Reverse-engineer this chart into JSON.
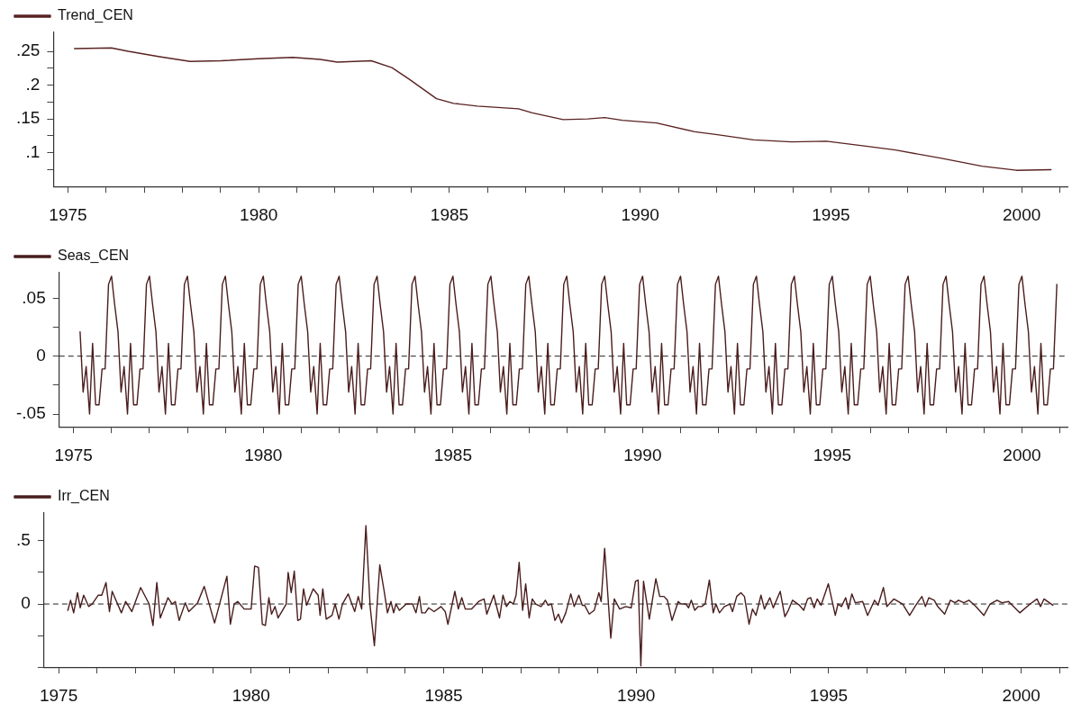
{
  "chart_data": [
    {
      "type": "line",
      "legend": "top left",
      "marker": "none",
      "grid": false,
      "xlim": [
        1974.62,
        2001.2
      ],
      "xticks": [
        1975,
        {
          "value": 1976,
          "label": null
        },
        {
          "value": 1977,
          "label": null
        },
        {
          "value": 1978,
          "label": null
        },
        {
          "value": 1979,
          "label": null
        },
        1980,
        {
          "value": 1981,
          "label": null
        },
        {
          "value": 1982,
          "label": null
        },
        {
          "value": 1983,
          "label": null
        },
        {
          "value": 1984,
          "label": null
        },
        1985,
        {
          "value": 1986,
          "label": null
        },
        {
          "value": 1987,
          "label": null
        },
        {
          "value": 1988,
          "label": null
        },
        {
          "value": 1989,
          "label": null
        },
        1990,
        {
          "value": 1991,
          "label": null
        },
        {
          "value": 1992,
          "label": null
        },
        {
          "value": 1993,
          "label": null
        },
        {
          "value": 1994,
          "label": null
        },
        1995,
        {
          "value": 1996,
          "label": null
        },
        {
          "value": 1997,
          "label": null
        },
        {
          "value": 1998,
          "label": null
        },
        {
          "value": 1999,
          "label": null
        },
        2000,
        {
          "value": 2001,
          "label": null
        }
      ],
      "ylim": [
        0.05,
        0.278
      ],
      "yticks": [
        {
          "value": 0.075,
          "label": null
        },
        {
          "value": 0.1,
          "label": ".1"
        },
        {
          "value": 0.125,
          "label": null
        },
        {
          "value": 0.15,
          "label": ".15"
        },
        {
          "value": 0.175,
          "label": null
        },
        {
          "value": 0.2,
          "label": ".2"
        },
        {
          "value": 0.225,
          "label": null
        },
        {
          "value": 0.25,
          "label": ".25"
        }
      ],
      "series": [
        {
          "name": "Trend_CEN",
          "color": "#5a2222",
          "x": [
            1975.17,
            1976.14,
            1976.58,
            1977.4,
            1978.2,
            1979.01,
            1979.99,
            1980.89,
            1981.61,
            1982.06,
            1982.95,
            1983.49,
            1983.94,
            1984.66,
            1985.11,
            1985.73,
            1986.81,
            1987.17,
            1987.98,
            1988.62,
            1989.07,
            1989.53,
            1990.43,
            1991.43,
            1991.98,
            1992.97,
            1993.97,
            1994.88,
            1995.87,
            1996.69,
            1997.87,
            1998.96,
            1999.86,
            2000.77
          ],
          "values": [
            0.254,
            0.255,
            0.25,
            0.242,
            0.235,
            0.236,
            0.239,
            0.241,
            0.238,
            0.234,
            0.236,
            0.226,
            0.209,
            0.18,
            0.173,
            0.169,
            0.165,
            0.159,
            0.149,
            0.15,
            0.152,
            0.148,
            0.144,
            0.131,
            0.127,
            0.119,
            0.116,
            0.117,
            0.11,
            0.104,
            0.092,
            0.08,
            0.074,
            0.075
          ]
        }
      ]
    },
    {
      "type": "line",
      "legend": "top left",
      "marker": "none",
      "grid": false,
      "xlim": [
        1974.62,
        2001.2
      ],
      "xticks": [
        1975,
        {
          "value": 1976,
          "label": null
        },
        {
          "value": 1977,
          "label": null
        },
        {
          "value": 1978,
          "label": null
        },
        {
          "value": 1979,
          "label": null
        },
        1980,
        {
          "value": 1981,
          "label": null
        },
        {
          "value": 1982,
          "label": null
        },
        {
          "value": 1983,
          "label": null
        },
        {
          "value": 1984,
          "label": null
        },
        1985,
        {
          "value": 1986,
          "label": null
        },
        {
          "value": 1987,
          "label": null
        },
        {
          "value": 1988,
          "label": null
        },
        {
          "value": 1989,
          "label": null
        },
        1990,
        {
          "value": 1991,
          "label": null
        },
        {
          "value": 1992,
          "label": null
        },
        {
          "value": 1993,
          "label": null
        },
        {
          "value": 1994,
          "label": null
        },
        1995,
        {
          "value": 1996,
          "label": null
        },
        {
          "value": 1997,
          "label": null
        },
        {
          "value": 1998,
          "label": null
        },
        {
          "value": 1999,
          "label": null
        },
        2000,
        {
          "value": 2001,
          "label": null
        }
      ],
      "ylim": [
        -0.061,
        0.072
      ],
      "yticks": [
        {
          "value": -0.05,
          "label": "-.05"
        },
        {
          "value": -0.025,
          "label": null
        },
        0,
        {
          "value": 0.025,
          "label": null
        },
        {
          "value": 0.05,
          "label": ".05"
        }
      ],
      "ref_lines": [
        {
          "axis": "y",
          "value": 0,
          "line_style": "dashed"
        }
      ],
      "series": [
        {
          "name": "Seas_CEN",
          "color": "#4a1c1c",
          "x": [
            1975.17,
            1975.25,
            1975.33,
            1975.42,
            1975.5,
            1975.58,
            1975.67,
            1975.75,
            1975.83,
            1975.92,
            1976,
            1976.08,
            1976.17,
            1976.25,
            1976.33,
            1976.42,
            1976.5,
            1976.58,
            1976.67,
            1976.75,
            1976.83,
            1976.92,
            1977,
            1977.08,
            1977.17,
            1977.25,
            1977.33,
            1977.42,
            1977.5,
            1977.58,
            1977.67,
            1977.75,
            1977.83,
            1977.92,
            1978,
            1978.08,
            1978.17,
            1978.25,
            1978.33,
            1978.42,
            1978.5,
            1978.58,
            1978.67,
            1978.75,
            1978.83,
            1978.92,
            1979,
            1979.08,
            1979.17,
            1979.25,
            1979.33,
            1979.42,
            1979.5,
            1979.58,
            1979.67,
            1979.75,
            1979.83,
            1979.92,
            1980,
            1980.08,
            1980.17,
            1980.25,
            1980.33,
            1980.42,
            1980.5,
            1980.58,
            1980.67,
            1980.75,
            1980.83,
            1980.92,
            1981,
            1981.08,
            1981.17,
            1981.25,
            1981.33,
            1981.42,
            1981.5,
            1981.58,
            1981.67,
            1981.75,
            1981.83,
            1981.92,
            1982,
            1982.08,
            1982.17,
            1982.25,
            1982.33,
            1982.42,
            1982.5,
            1982.58,
            1982.67,
            1982.75,
            1982.83,
            1982.92,
            1983,
            1983.08,
            1983.17,
            1983.25,
            1983.33,
            1983.42,
            1983.5,
            1983.58,
            1983.67,
            1983.75,
            1983.83,
            1983.92,
            1984,
            1984.08,
            1984.17,
            1984.25,
            1984.33,
            1984.42,
            1984.5,
            1984.58,
            1984.67,
            1984.75,
            1984.83,
            1984.92,
            1985,
            1985.08,
            1985.17,
            1985.25,
            1985.33,
            1985.42,
            1985.5,
            1985.58,
            1985.67,
            1985.75,
            1985.83,
            1985.92,
            1986,
            1986.08,
            1986.17,
            1986.25,
            1986.33,
            1986.42,
            1986.5,
            1986.58,
            1986.67,
            1986.75,
            1986.83,
            1986.92,
            1987,
            1987.08,
            1987.17,
            1987.25,
            1987.33,
            1987.42,
            1987.5,
            1987.58,
            1987.67,
            1987.75,
            1987.83,
            1987.92,
            1988,
            1988.08,
            1988.17,
            1988.25,
            1988.33,
            1988.42,
            1988.5,
            1988.58,
            1988.67,
            1988.75,
            1988.83,
            1988.92,
            1989,
            1989.08,
            1989.17,
            1989.25,
            1989.33,
            1989.42,
            1989.5,
            1989.58,
            1989.67,
            1989.75,
            1989.83,
            1989.92,
            1990,
            1990.08,
            1990.17,
            1990.25,
            1990.33,
            1990.42,
            1990.5,
            1990.58,
            1990.67,
            1990.75,
            1990.83,
            1990.92,
            1991,
            1991.08,
            1991.17,
            1991.25,
            1991.33,
            1991.42,
            1991.5,
            1991.58,
            1991.67,
            1991.75,
            1991.83,
            1991.92,
            1992,
            1992.08,
            1992.17,
            1992.25,
            1992.33,
            1992.42,
            1992.5,
            1992.58,
            1992.67,
            1992.75,
            1992.83,
            1992.92,
            1993,
            1993.08,
            1993.17,
            1993.25,
            1993.33,
            1993.42,
            1993.5,
            1993.58,
            1993.67,
            1993.75,
            1993.83,
            1993.92,
            1994,
            1994.08,
            1994.17,
            1994.25,
            1994.33,
            1994.42,
            1994.5,
            1994.58,
            1994.67,
            1994.75,
            1994.83,
            1994.92,
            1995,
            1995.08,
            1995.17,
            1995.25,
            1995.33,
            1995.42,
            1995.5,
            1995.58,
            1995.67,
            1995.75,
            1995.83,
            1995.92,
            1996,
            1996.08,
            1996.17,
            1996.25,
            1996.33,
            1996.42,
            1996.5,
            1996.58,
            1996.67,
            1996.75,
            1996.83,
            1996.92,
            1997,
            1997.08,
            1997.17,
            1997.25,
            1997.33,
            1997.42,
            1997.5,
            1997.58,
            1997.67,
            1997.75,
            1997.83,
            1997.92,
            1998,
            1998.08,
            1998.17,
            1998.25,
            1998.33,
            1998.42,
            1998.5,
            1998.58,
            1998.67,
            1998.75,
            1998.83,
            1998.92,
            1999,
            1999.08,
            1999.17,
            1999.25,
            1999.33,
            1999.42,
            1999.5,
            1999.58,
            1999.67,
            1999.75,
            1999.83,
            1999.92,
            2000,
            2000.08,
            2000.17,
            2000.25,
            2000.33,
            2000.42,
            2000.5,
            2000.58,
            2000.67,
            2000.75,
            2000.83,
            2000.92
          ],
          "values": [
            0.021,
            -0.031,
            -0.009,
            -0.05,
            0.011,
            -0.042,
            -0.042,
            -0.011,
            -0.011,
            0.062,
            0.069,
            0.045,
            0.021,
            -0.031,
            -0.009,
            -0.05,
            0.011,
            -0.042,
            -0.042,
            -0.011,
            -0.011,
            0.062,
            0.069,
            0.045,
            0.021,
            -0.031,
            -0.009,
            -0.05,
            0.011,
            -0.042,
            -0.042,
            -0.011,
            -0.011,
            0.062,
            0.069,
            0.045,
            0.021,
            -0.031,
            -0.009,
            -0.05,
            0.011,
            -0.042,
            -0.042,
            -0.011,
            -0.011,
            0.062,
            0.069,
            0.045,
            0.021,
            -0.031,
            -0.009,
            -0.05,
            0.011,
            -0.042,
            -0.042,
            -0.011,
            -0.011,
            0.062,
            0.069,
            0.045,
            0.021,
            -0.031,
            -0.009,
            -0.05,
            0.011,
            -0.042,
            -0.042,
            -0.011,
            -0.011,
            0.062,
            0.069,
            0.045,
            0.021,
            -0.031,
            -0.009,
            -0.05,
            0.011,
            -0.042,
            -0.042,
            -0.011,
            -0.011,
            0.062,
            0.069,
            0.045,
            0.021,
            -0.031,
            -0.009,
            -0.05,
            0.011,
            -0.042,
            -0.042,
            -0.011,
            -0.011,
            0.062,
            0.069,
            0.045,
            0.021,
            -0.031,
            -0.009,
            -0.05,
            0.011,
            -0.042,
            -0.042,
            -0.011,
            -0.011,
            0.062,
            0.069,
            0.045,
            0.021,
            -0.031,
            -0.009,
            -0.05,
            0.011,
            -0.042,
            -0.042,
            -0.011,
            -0.011,
            0.062,
            0.069,
            0.045,
            0.021,
            -0.031,
            -0.009,
            -0.05,
            0.011,
            -0.042,
            -0.042,
            -0.011,
            -0.011,
            0.062,
            0.069,
            0.045,
            0.021,
            -0.031,
            -0.009,
            -0.05,
            0.011,
            -0.042,
            -0.042,
            -0.011,
            -0.011,
            0.062,
            0.069,
            0.045,
            0.021,
            -0.031,
            -0.009,
            -0.05,
            0.011,
            -0.042,
            -0.042,
            -0.011,
            -0.011,
            0.062,
            0.069,
            0.045,
            0.021,
            -0.031,
            -0.009,
            -0.05,
            0.011,
            -0.042,
            -0.042,
            -0.011,
            -0.011,
            0.062,
            0.069,
            0.045,
            0.021,
            -0.031,
            -0.009,
            -0.05,
            0.011,
            -0.042,
            -0.042,
            -0.011,
            -0.011,
            0.062,
            0.069,
            0.045,
            0.021,
            -0.031,
            -0.009,
            -0.05,
            0.011,
            -0.042,
            -0.042,
            -0.011,
            -0.011,
            0.062,
            0.069,
            0.045,
            0.021,
            -0.031,
            -0.009,
            -0.05,
            0.011,
            -0.042,
            -0.042,
            -0.011,
            -0.011,
            0.062,
            0.069,
            0.045,
            0.021,
            -0.031,
            -0.009,
            -0.05,
            0.011,
            -0.042,
            -0.042,
            -0.011,
            -0.011,
            0.062,
            0.069,
            0.045,
            0.021,
            -0.031,
            -0.009,
            -0.05,
            0.011,
            -0.042,
            -0.042,
            -0.011,
            -0.011,
            0.062,
            0.069,
            0.045,
            0.021,
            -0.031,
            -0.009,
            -0.05,
            0.011,
            -0.042,
            -0.042,
            -0.011,
            -0.011,
            0.062,
            0.069,
            0.045,
            0.021,
            -0.031,
            -0.009,
            -0.05,
            0.011,
            -0.042,
            -0.042,
            -0.011,
            -0.011,
            0.062,
            0.069,
            0.045,
            0.021,
            -0.031,
            -0.009,
            -0.05,
            0.011,
            -0.042,
            -0.042,
            -0.011,
            -0.011,
            0.062,
            0.069,
            0.045,
            0.021,
            -0.031,
            -0.009,
            -0.05,
            0.011,
            -0.042,
            -0.042,
            -0.011,
            -0.011,
            0.062,
            0.069,
            0.045,
            0.021,
            -0.031,
            -0.009,
            -0.05,
            0.011,
            -0.042,
            -0.042,
            -0.011,
            -0.011,
            0.062,
            0.069,
            0.045,
            0.021,
            -0.031,
            -0.009,
            -0.05,
            0.011,
            -0.042,
            -0.042,
            -0.011,
            -0.011,
            0.062,
            0.069,
            0.045,
            0.021,
            -0.031,
            -0.009,
            -0.05,
            0.011,
            -0.042,
            -0.042,
            -0.011,
            -0.011,
            0.062
          ]
        }
      ]
    },
    {
      "type": "line",
      "legend": "top left",
      "marker": "none",
      "grid": false,
      "xlim": [
        1974.62,
        2001.2
      ],
      "xticks": [
        1975,
        {
          "value": 1976,
          "label": null
        },
        {
          "value": 1977,
          "label": null
        },
        {
          "value": 1978,
          "label": null
        },
        {
          "value": 1979,
          "label": null
        },
        1980,
        {
          "value": 1981,
          "label": null
        },
        {
          "value": 1982,
          "label": null
        },
        {
          "value": 1983,
          "label": null
        },
        {
          "value": 1984,
          "label": null
        },
        1985,
        {
          "value": 1986,
          "label": null
        },
        {
          "value": 1987,
          "label": null
        },
        {
          "value": 1988,
          "label": null
        },
        {
          "value": 1989,
          "label": null
        },
        1990,
        {
          "value": 1991,
          "label": null
        },
        {
          "value": 1992,
          "label": null
        },
        {
          "value": 1993,
          "label": null
        },
        {
          "value": 1994,
          "label": null
        },
        1995,
        {
          "value": 1996,
          "label": null
        },
        {
          "value": 1997,
          "label": null
        },
        {
          "value": 1998,
          "label": null
        },
        {
          "value": 1999,
          "label": null
        },
        2000,
        {
          "value": 2001,
          "label": null
        }
      ],
      "ylim": [
        -0.5,
        0.72
      ],
      "yticks": [
        {
          "value": -0.5,
          "label": null
        },
        {
          "value": -0.25,
          "label": null
        },
        0,
        {
          "value": 0.25,
          "label": null
        },
        {
          "value": 0.5,
          "label": ".5"
        }
      ],
      "ref_lines": [
        {
          "axis": "y",
          "value": 0,
          "line_style": "dashed"
        }
      ],
      "series": [
        {
          "name": "Irr_CEN",
          "color": "#4a1c1c",
          "x": [
            1975.24,
            1975.31,
            1975.39,
            1975.49,
            1975.56,
            1975.65,
            1975.78,
            1975.87,
            1976.03,
            1976.12,
            1976.23,
            1976.32,
            1976.39,
            1976.63,
            1976.74,
            1976.9,
            1977.13,
            1977.35,
            1977.45,
            1977.55,
            1977.64,
            1977.84,
            1977.95,
            1978.03,
            1978.13,
            1978.29,
            1978.38,
            1978.61,
            1978.78,
            1979.05,
            1979.37,
            1979.46,
            1979.56,
            1979.65,
            1979.82,
            1980,
            1980.09,
            1980.19,
            1980.29,
            1980.37,
            1980.46,
            1980.53,
            1980.62,
            1980.7,
            1980.91,
            1980.96,
            1981.04,
            1981.12,
            1981.21,
            1981.28,
            1981.36,
            1981.44,
            1981.61,
            1981.74,
            1981.79,
            1981.86,
            1981.95,
            1982.1,
            1982.18,
            1982.28,
            1982.37,
            1982.52,
            1982.69,
            1982.78,
            1982.87,
            1982.98,
            1983.09,
            1983.2,
            1983.34,
            1983.45,
            1983.54,
            1983.63,
            1983.7,
            1983.76,
            1983.85,
            1984.03,
            1984.19,
            1984.28,
            1984.37,
            1984.43,
            1984.52,
            1984.61,
            1984.75,
            1984.93,
            1985.04,
            1985.11,
            1985.29,
            1985.38,
            1985.47,
            1985.56,
            1985.72,
            1985.91,
            1986.05,
            1986.12,
            1986.3,
            1986.45,
            1986.54,
            1986.63,
            1986.72,
            1986.81,
            1986.88,
            1986.96,
            1987.05,
            1987.13,
            1987.22,
            1987.3,
            1987.39,
            1987.53,
            1987.64,
            1987.71,
            1987.8,
            1987.89,
            1987.98,
            1988.06,
            1988.17,
            1988.3,
            1988.39,
            1988.51,
            1988.6,
            1988.66,
            1988.78,
            1988.91,
            1989.03,
            1989.09,
            1989.18,
            1989.34,
            1989.43,
            1989.57,
            1989.73,
            1989.87,
            1989.98,
            1990.05,
            1990.12,
            1990.19,
            1990.34,
            1990.51,
            1990.61,
            1990.72,
            1990.81,
            1990.93,
            1991.09,
            1991.16,
            1991.29,
            1991.36,
            1991.43,
            1991.52,
            1991.61,
            1991.7,
            1991.79,
            1991.9,
            1992,
            1992.07,
            1992.16,
            1992.29,
            1992.43,
            1992.5,
            1992.61,
            1992.72,
            1992.81,
            1992.93,
            1993.02,
            1993.11,
            1993.24,
            1993.33,
            1993.47,
            1993.56,
            1993.74,
            1993.86,
            1993.95,
            1994.06,
            1994.24,
            1994.35,
            1994.45,
            1994.53,
            1994.62,
            1994.7,
            1994.8,
            1994.99,
            1995.17,
            1995.24,
            1995.33,
            1995.44,
            1995.51,
            1995.6,
            1995.69,
            1995.88,
            1996.01,
            1996.19,
            1996.28,
            1996.42,
            1996.51,
            1996.69,
            1996.92,
            1997.1,
            1997.28,
            1997.42,
            1997.51,
            1997.6,
            1997.74,
            1997.83,
            1998.01,
            1998.16,
            1998.28,
            1998.37,
            1998.51,
            1998.64,
            1998.82,
            1999.03,
            1999.19,
            1999.37,
            1999.5,
            1999.67,
            1999.96,
            2000.23,
            2000.41,
            2000.5,
            2000.59,
            2000.73,
            2000.82
          ],
          "values": [
            -0.05,
            0.03,
            -0.07,
            0.09,
            -0.03,
            0.07,
            -0.02,
            0,
            0.07,
            0.07,
            0.17,
            -0.06,
            0.1,
            -0.07,
            0.02,
            -0.06,
            0.13,
            0,
            -0.17,
            0.17,
            -0.11,
            0.05,
            0,
            0.02,
            -0.13,
            0.01,
            -0.06,
            0.01,
            0.14,
            -0.15,
            0.22,
            -0.16,
            0,
            0.02,
            -0.04,
            -0.04,
            0.3,
            0.29,
            -0.16,
            -0.17,
            0.05,
            -0.08,
            -0.02,
            -0.11,
            0,
            0.25,
            0.09,
            0.26,
            -0.13,
            -0.12,
            0.12,
            -0.01,
            0.12,
            0.07,
            -0.09,
            0.12,
            -0.12,
            -0.09,
            0,
            -0.12,
            0,
            0.08,
            -0.06,
            0.06,
            -0.04,
            0.62,
            -0.02,
            -0.33,
            0.31,
            0.11,
            -0.07,
            0.02,
            -0.07,
            0,
            -0.05,
            0,
            0,
            -0.07,
            0.06,
            -0.07,
            -0.07,
            -0.03,
            -0.06,
            -0.02,
            -0.06,
            -0.16,
            0.1,
            -0.04,
            0.05,
            -0.04,
            -0.04,
            0.02,
            0.04,
            -0.08,
            0.07,
            -0.11,
            0.07,
            -0.02,
            0.02,
            0,
            0.07,
            0.33,
            -0.05,
            0.16,
            -0.11,
            0.04,
            0,
            -0.02,
            0.03,
            -0.01,
            0,
            -0.13,
            -0.08,
            -0.15,
            -0.07,
            0.08,
            -0.02,
            0.07,
            -0.01,
            -0.01,
            -0.08,
            -0.05,
            0.09,
            0.02,
            0.44,
            -0.27,
            0.04,
            -0.04,
            -0.02,
            -0.03,
            0.18,
            0.19,
            -0.49,
            0.18,
            -0.12,
            0.2,
            0.06,
            0.06,
            0.03,
            -0.13,
            0.02,
            0,
            0,
            -0.03,
            0.03,
            -0.05,
            -0.02,
            -0.02,
            0,
            0.19,
            -0.07,
            0,
            -0.07,
            -0.02,
            0,
            -0.06,
            0.06,
            0.09,
            0.06,
            -0.16,
            -0.04,
            -0.09,
            0.07,
            -0.04,
            0.05,
            -0.03,
            0.1,
            -0.1,
            -0.05,
            0.03,
            -0.01,
            -0.05,
            0.04,
            0.05,
            -0.03,
            0.04,
            -0.01,
            0.16,
            -0.09,
            0,
            -0.02,
            0.05,
            -0.04,
            0.08,
            0.01,
            0.02,
            -0.09,
            0.03,
            -0.01,
            0.13,
            -0.02,
            0.04,
            0,
            -0.09,
            0,
            0.06,
            -0.02,
            0.05,
            0.03,
            -0.02,
            -0.08,
            0.03,
            0.01,
            0.03,
            0.01,
            0.03,
            -0.02,
            -0.09,
            0,
            0.03,
            0.01,
            0.02,
            -0.07,
            0,
            0.04,
            -0.02,
            0.04,
            0.01,
            -0.01
          ]
        }
      ]
    }
  ]
}
